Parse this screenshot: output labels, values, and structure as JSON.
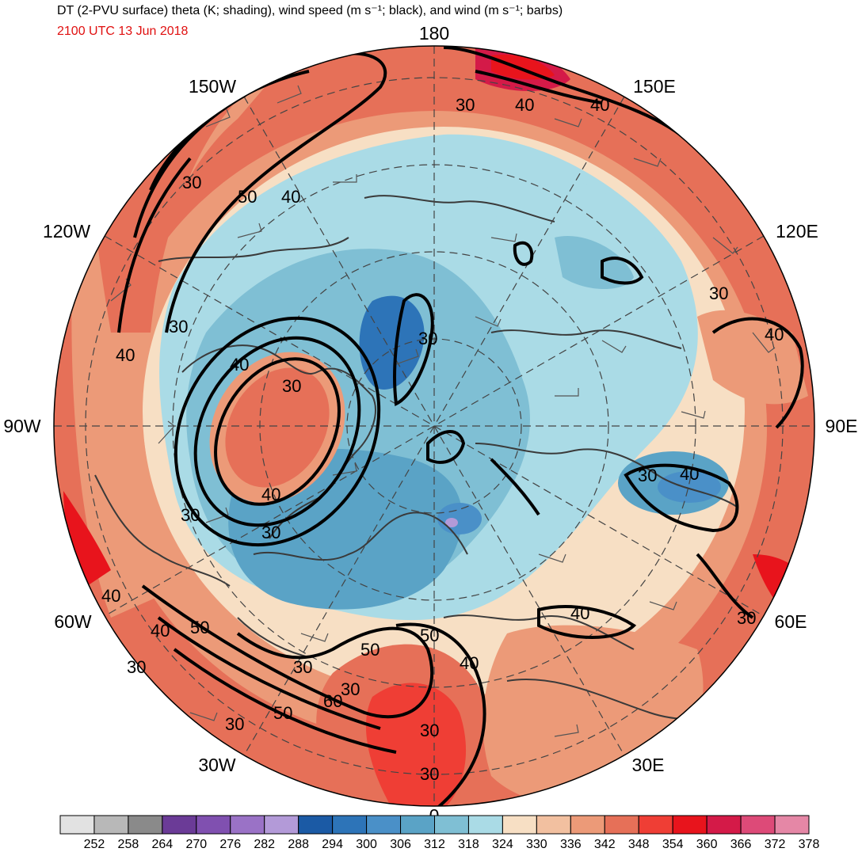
{
  "header": {
    "title": "DT (2-PVU surface) theta (K; shading), wind speed (m s⁻¹; black), and wind (m s⁻¹; barbs)",
    "valid_time": "2100 UTC 13 Jun 2018"
  },
  "map": {
    "projection": "polar-stereographic-north",
    "longitude_labels": {
      "top": "180",
      "top_left": "150W",
      "top_right": "150E",
      "upper_left": "120W",
      "upper_right": "120E",
      "left": "90W",
      "right": "90E",
      "lower_left": "60W",
      "lower_right": "60E",
      "bottom_left": "30W",
      "bottom_right": "30E",
      "bottom": "0"
    },
    "contour_labels": [
      "30",
      "40",
      "50",
      "30",
      "40",
      "30",
      "30",
      "40",
      "30",
      "40",
      "30",
      "40",
      "30",
      "40",
      "30",
      "40",
      "30",
      "40",
      "50",
      "30",
      "30",
      "40",
      "50",
      "30",
      "60",
      "50",
      "30",
      "30",
      "40",
      "40",
      "30",
      "40",
      "50",
      "30"
    ]
  },
  "colorbar": {
    "levels": [
      "252",
      "258",
      "264",
      "270",
      "276",
      "282",
      "288",
      "294",
      "300",
      "306",
      "312",
      "318",
      "324",
      "330",
      "336",
      "342",
      "348",
      "354",
      "360",
      "366",
      "372",
      "378"
    ],
    "colors": [
      "#e2e2e2",
      "#b8b8b8",
      "#8a8a8a",
      "#6b3b97",
      "#8050b0",
      "#9a72c6",
      "#b39ad8",
      "#1b5aa5",
      "#2d74b8",
      "#4a90c8",
      "#5aa3c6",
      "#7fbfd4",
      "#aadbe6",
      "#f7dfc4",
      "#f2c0a0",
      "#ec9a78",
      "#e67058",
      "#ef3e35",
      "#e8141c",
      "#d41a48",
      "#dd4a78",
      "#e587a6"
    ]
  }
}
